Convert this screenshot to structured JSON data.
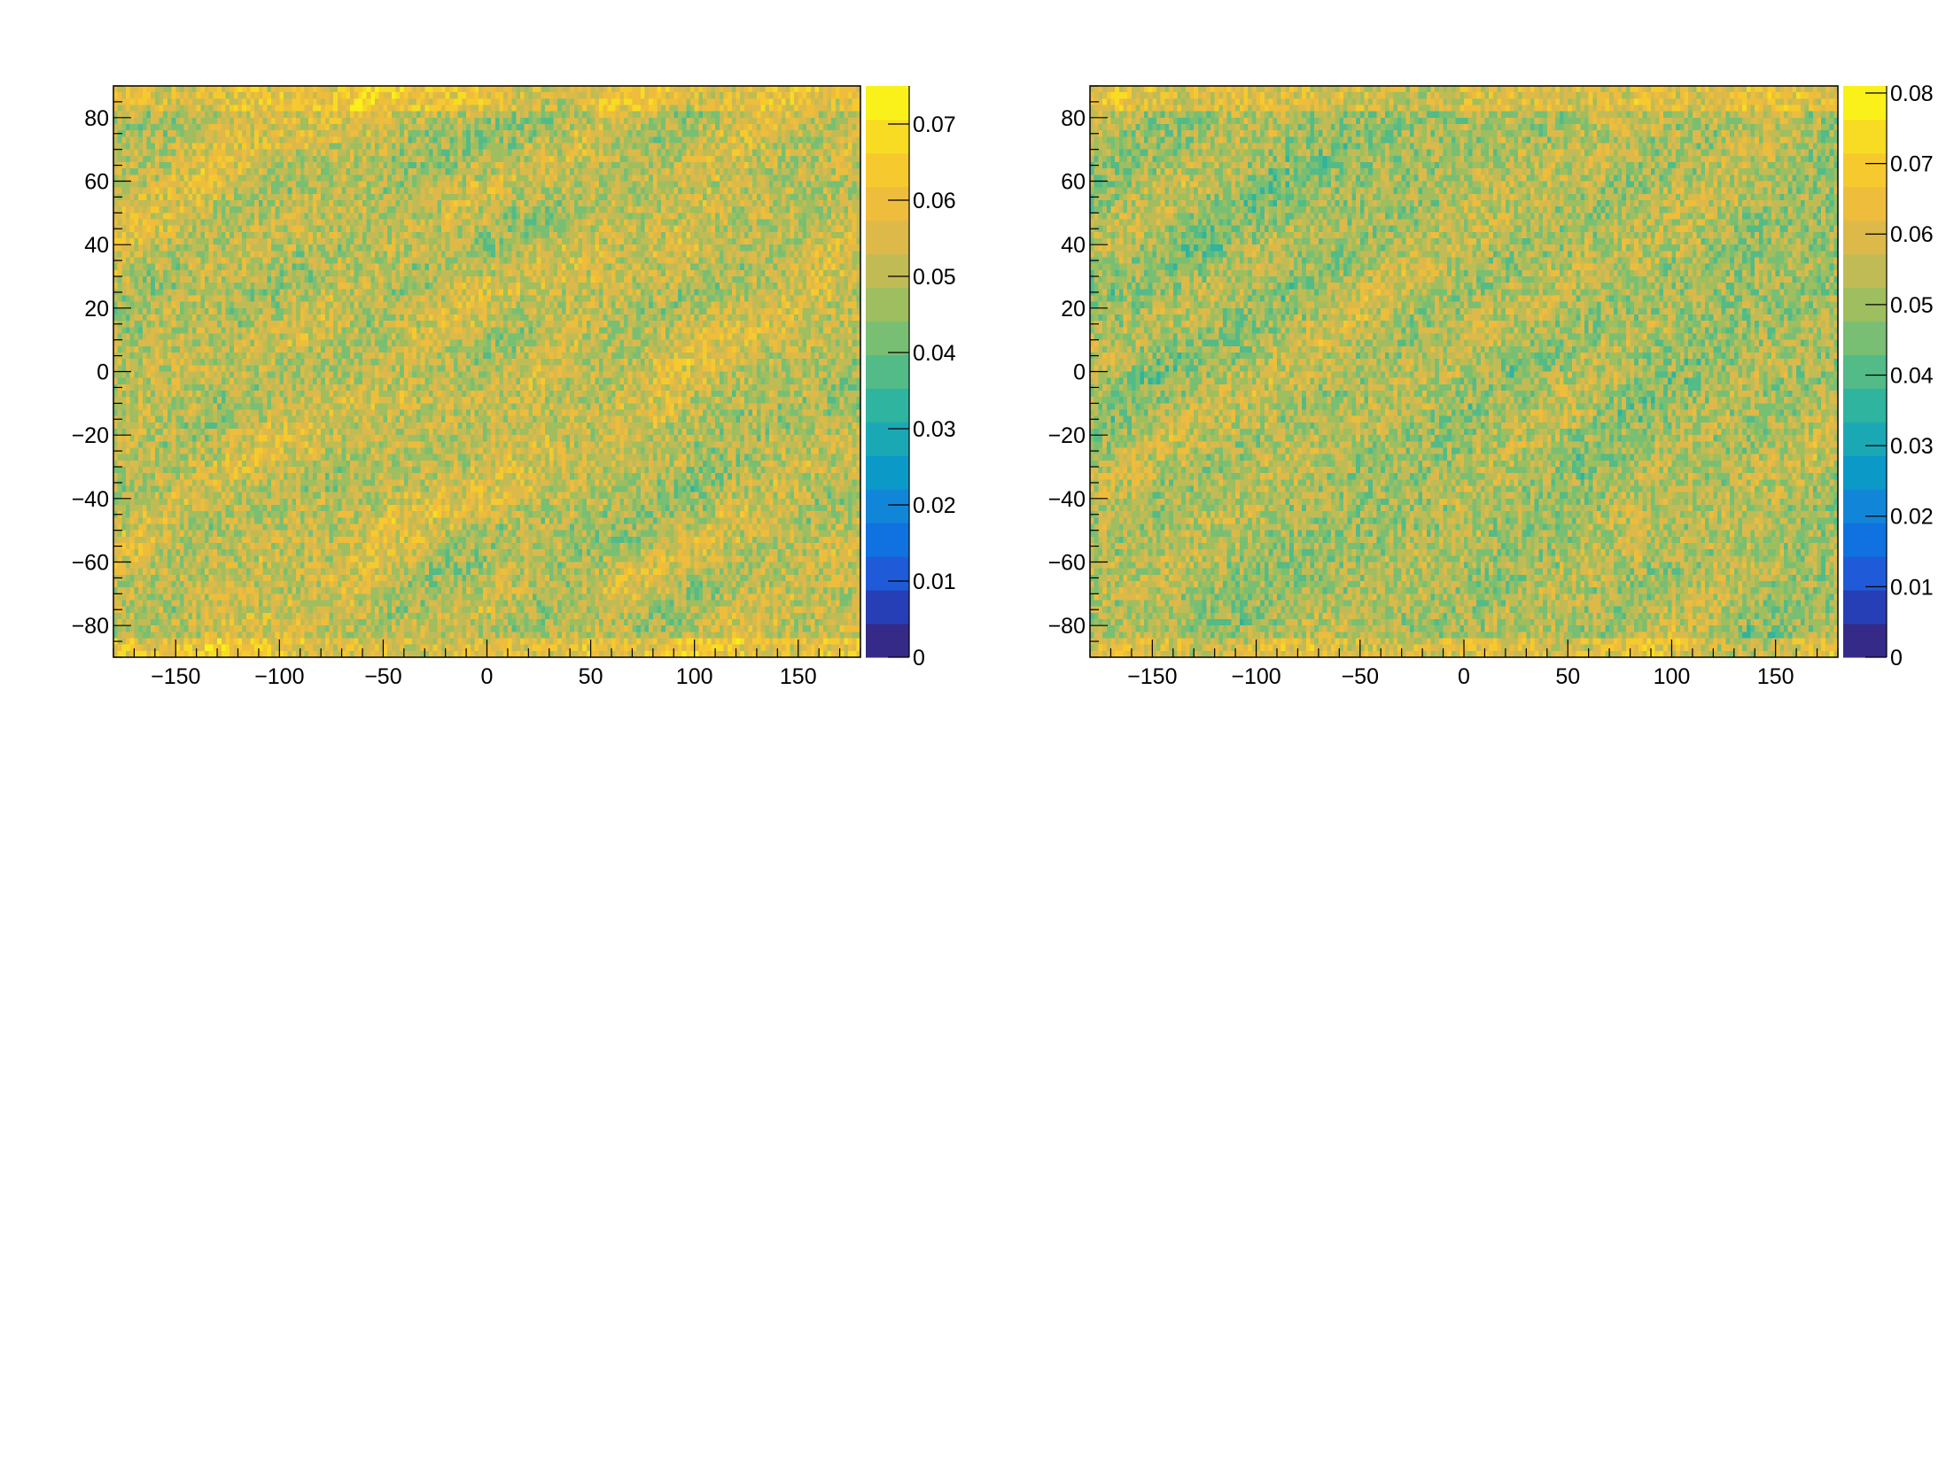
{
  "chart_data": [
    {
      "type": "heatmap",
      "title": "",
      "xlabel": "",
      "ylabel": "",
      "xlim": [
        -180,
        180
      ],
      "ylim": [
        -90,
        90
      ],
      "x_ticks": [
        -150,
        -100,
        -50,
        0,
        50,
        100,
        150
      ],
      "y_ticks": [
        -80,
        -60,
        -40,
        -20,
        0,
        20,
        40,
        60,
        80
      ],
      "x_tick_labels": [
        "−150",
        "−100",
        "−50",
        "0",
        "50",
        "100",
        "150"
      ],
      "y_tick_labels": [
        "−80",
        "−60",
        "−40",
        "−20",
        "0",
        "20",
        "40",
        "60",
        "80"
      ],
      "z_range": [
        0,
        0.075
      ],
      "z_ticks": [
        0,
        0.01,
        0.02,
        0.03,
        0.04,
        0.05,
        0.06,
        0.07
      ],
      "z_tick_labels": [
        "0",
        "0.01",
        "0.02",
        "0.03",
        "0.04",
        "0.05",
        "0.06",
        "0.07"
      ],
      "z_mean": 0.051,
      "z_spread": 0.012,
      "colormap": "parula",
      "grid": false,
      "seed": 7
    },
    {
      "type": "heatmap",
      "title": "",
      "xlabel": "",
      "ylabel": "",
      "xlim": [
        -180,
        180
      ],
      "ylim": [
        -90,
        90
      ],
      "x_ticks": [
        -150,
        -100,
        -50,
        0,
        50,
        100,
        150
      ],
      "y_ticks": [
        -80,
        -60,
        -40,
        -20,
        0,
        20,
        40,
        60,
        80
      ],
      "x_tick_labels": [
        "−150",
        "−100",
        "−50",
        "0",
        "50",
        "100",
        "150"
      ],
      "y_tick_labels": [
        "−80",
        "−60",
        "−40",
        "−20",
        "0",
        "20",
        "40",
        "60",
        "80"
      ],
      "z_range": [
        0,
        0.081
      ],
      "z_ticks": [
        0,
        0.01,
        0.02,
        0.03,
        0.04,
        0.05,
        0.06,
        0.07,
        0.08
      ],
      "z_tick_labels": [
        "0",
        "0.01",
        "0.02",
        "0.03",
        "0.04",
        "0.05",
        "0.06",
        "0.07",
        "0.08"
      ],
      "z_mean": 0.052,
      "z_spread": 0.013,
      "colormap": "parula",
      "grid": false,
      "seed": 13
    }
  ],
  "colors": {
    "palette": [
      "#352a87",
      "#263fb6",
      "#1f5bd8",
      "#0f72e0",
      "#1186d8",
      "#0b99c8",
      "#1ba8b5",
      "#2eb49f",
      "#52bb88",
      "#78bf73",
      "#9ebe5f",
      "#c1bb55",
      "#ddb94a",
      "#eebd3c",
      "#f6ca2e",
      "#f8dc23",
      "#f9f119"
    ],
    "axis": "#000000",
    "background": "#ffffff"
  }
}
